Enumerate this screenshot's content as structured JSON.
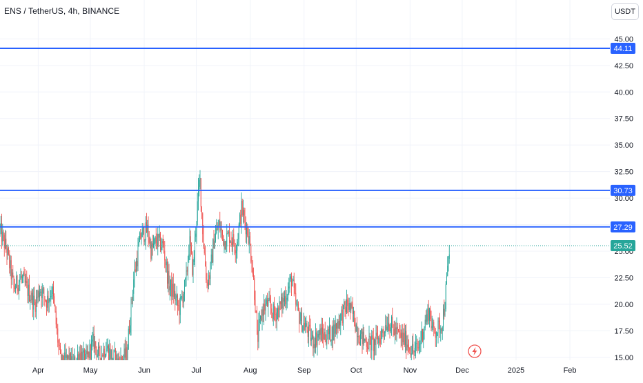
{
  "header": {
    "title": "ENS / TetherUS, 4h, BINANCE",
    "currency_button": "USDT"
  },
  "colors": {
    "up": "#26a69a",
    "down": "#ef5350",
    "level_line": "#2962ff",
    "last_price_bg": "#26a69a",
    "grid": "#f0f3fa",
    "axis_text": "#131722"
  },
  "icons": {
    "event_marker": "lightning-bolt-icon"
  },
  "chart_data": {
    "type": "candlestick",
    "y_axis": {
      "ticks": [
        "15.00",
        "17.50",
        "20.00",
        "22.50",
        "25.00",
        "27.50",
        "30.00",
        "32.50",
        "35.00",
        "37.50",
        "40.00",
        "42.50",
        "45.00"
      ],
      "range": [
        14.4,
        47.3
      ]
    },
    "x_axis": {
      "labels": [
        "Apr",
        "May",
        "Jun",
        "Jul",
        "Aug",
        "Sep",
        "Oct",
        "Nov",
        "Dec",
        "2025",
        "Feb"
      ],
      "label_dates": [
        "2024-04-01",
        "2024-05-01",
        "2024-06-01",
        "2024-07-01",
        "2024-08-01",
        "2024-09-01",
        "2024-10-01",
        "2024-11-01",
        "2024-12-01",
        "2025-01-01",
        "2025-02-01"
      ],
      "range": [
        "2024-03-10",
        "2025-02-24"
      ]
    },
    "horizontal_levels": [
      {
        "value": 44.11,
        "label": "44.11"
      },
      {
        "value": 30.73,
        "label": "30.73"
      },
      {
        "value": 27.29,
        "label": "27.29"
      }
    ],
    "last_price": {
      "value": 25.52,
      "label": "25.52"
    },
    "price_path": [
      [
        "2024-03-10",
        27.0
      ],
      [
        "2024-03-14",
        25.0
      ],
      [
        "2024-03-18",
        21.5
      ],
      [
        "2024-03-22",
        22.5
      ],
      [
        "2024-03-27",
        21.0
      ],
      [
        "2024-03-30",
        20.0
      ],
      [
        "2024-04-02",
        21.5
      ],
      [
        "2024-04-06",
        20.3
      ],
      [
        "2024-04-09",
        21.5
      ],
      [
        "2024-04-12",
        17.0
      ],
      [
        "2024-04-14",
        14.3
      ],
      [
        "2024-04-18",
        14.8
      ],
      [
        "2024-04-21",
        14.2
      ],
      [
        "2024-04-25",
        15.5
      ],
      [
        "2024-04-28",
        14.5
      ],
      [
        "2024-05-03",
        16.5
      ],
      [
        "2024-05-06",
        15.0
      ],
      [
        "2024-05-10",
        16.0
      ],
      [
        "2024-05-14",
        15.0
      ],
      [
        "2024-05-18",
        14.5
      ],
      [
        "2024-05-22",
        15.3
      ],
      [
        "2024-05-24",
        19.0
      ],
      [
        "2024-05-26",
        22.5
      ],
      [
        "2024-05-30",
        26.5
      ],
      [
        "2024-06-03",
        27.0
      ],
      [
        "2024-06-05",
        25.0
      ],
      [
        "2024-06-08",
        26.0
      ],
      [
        "2024-06-12",
        25.5
      ],
      [
        "2024-06-15",
        22.0
      ],
      [
        "2024-06-18",
        21.0
      ],
      [
        "2024-06-21",
        19.5
      ],
      [
        "2024-06-25",
        22.0
      ],
      [
        "2024-06-27",
        26.0
      ],
      [
        "2024-06-29",
        23.0
      ],
      [
        "2024-07-01",
        28.0
      ],
      [
        "2024-07-03",
        32.0
      ],
      [
        "2024-07-05",
        26.0
      ],
      [
        "2024-07-07",
        22.0
      ],
      [
        "2024-07-09",
        23.0
      ],
      [
        "2024-07-11",
        26.0
      ],
      [
        "2024-07-14",
        27.5
      ],
      [
        "2024-07-17",
        26.0
      ],
      [
        "2024-07-20",
        26.5
      ],
      [
        "2024-07-24",
        25.5
      ],
      [
        "2024-07-27",
        29.0
      ],
      [
        "2024-07-31",
        26.5
      ],
      [
        "2024-08-02",
        24.0
      ],
      [
        "2024-08-04",
        20.0
      ],
      [
        "2024-08-05",
        16.5
      ],
      [
        "2024-08-08",
        19.5
      ],
      [
        "2024-08-11",
        20.0
      ],
      [
        "2024-08-15",
        19.0
      ],
      [
        "2024-08-19",
        20.0
      ],
      [
        "2024-08-22",
        21.0
      ],
      [
        "2024-08-25",
        22.5
      ],
      [
        "2024-08-27",
        20.0
      ],
      [
        "2024-08-30",
        18.5
      ],
      [
        "2024-09-03",
        17.5
      ],
      [
        "2024-09-06",
        16.5
      ],
      [
        "2024-09-10",
        17.2
      ],
      [
        "2024-09-14",
        17.0
      ],
      [
        "2024-09-18",
        17.5
      ],
      [
        "2024-09-22",
        18.8
      ],
      [
        "2024-09-26",
        20.0
      ],
      [
        "2024-09-29",
        19.0
      ],
      [
        "2024-10-03",
        17.0
      ],
      [
        "2024-10-07",
        16.5
      ],
      [
        "2024-10-11",
        16.2
      ],
      [
        "2024-10-15",
        17.0
      ],
      [
        "2024-10-19",
        18.5
      ],
      [
        "2024-10-23",
        17.5
      ],
      [
        "2024-10-26",
        17.0
      ],
      [
        "2024-10-30",
        16.5
      ],
      [
        "2024-11-03",
        15.5
      ],
      [
        "2024-11-06",
        16.0
      ],
      [
        "2024-11-09",
        18.0
      ],
      [
        "2024-11-12",
        19.5
      ],
      [
        "2024-11-14",
        17.5
      ],
      [
        "2024-11-16",
        17.5
      ],
      [
        "2024-11-19",
        18.0
      ],
      [
        "2024-11-21",
        20.0
      ],
      [
        "2024-11-23",
        24.0
      ],
      [
        "2024-11-24",
        25.52
      ]
    ]
  }
}
